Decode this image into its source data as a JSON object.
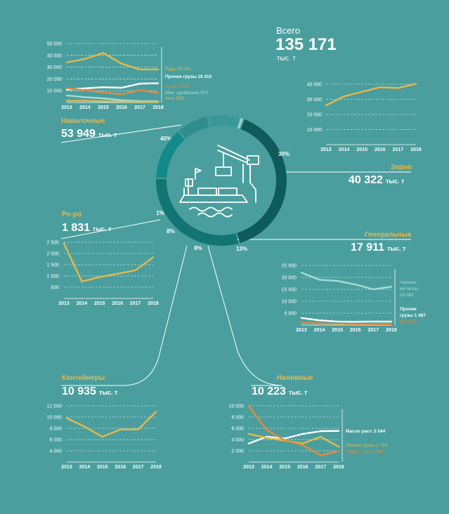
{
  "total": {
    "label": "Всего",
    "value": "135 171",
    "unit": "тыс. т"
  },
  "sections": [
    {
      "id": "bulk",
      "title": "Навалочные",
      "value": "53 949",
      "unit": "тыс. т"
    },
    {
      "id": "grain",
      "title": "Зерно",
      "value": "40 322",
      "unit": "тыс. т"
    },
    {
      "id": "roro",
      "title": "Ро-ро",
      "value": "1 831",
      "unit": "тыс. т"
    },
    {
      "id": "general",
      "title": "Генеральные",
      "value": "17 911",
      "unit": "тыс. т"
    },
    {
      "id": "containers",
      "title": "Контейнеры",
      "value": "10 935",
      "unit": "тыс. т"
    },
    {
      "id": "liquid",
      "title": "Наливные",
      "value": "10 223",
      "unit": "тыс. т"
    }
  ],
  "colors": {
    "background": "#4a9e9e",
    "gold": "#e8b84a",
    "orange": "#e68a3c",
    "light": "#a8dcd6",
    "white": "#ffffff",
    "donut_dark": "#0f5a5a",
    "donut_mid": "#137474",
    "donut_light": "#3a9898"
  },
  "chart_data": [
    {
      "id": "donut",
      "type": "pie",
      "categories": [
        "Навалочные",
        "Зерно",
        "Генеральные",
        "Наливные",
        "Контейнеры",
        "Ро-ро"
      ],
      "values": [
        40,
        30,
        13,
        8,
        8,
        1
      ],
      "labels": [
        "40%",
        "30%",
        "13%",
        "8%",
        "8%",
        "1%"
      ]
    },
    {
      "id": "bulk",
      "type": "line",
      "x": [
        2013,
        2014,
        2015,
        2016,
        2017,
        2018
      ],
      "yticks": [
        "10 000",
        "20 000",
        "30 000",
        "40 000",
        "50 000"
      ],
      "ylim": [
        0,
        50000
      ],
      "series": [
        {
          "name": "Руда 28 061",
          "color": "#e8b84a",
          "values": [
            34000,
            37000,
            42000,
            33000,
            28000,
            28061
          ]
        },
        {
          "name": "Прочие грузы 16 310",
          "color": "#ffffff",
          "values": [
            11000,
            12000,
            13000,
            12500,
            16000,
            16310
          ]
        },
        {
          "name": "Уголь 8 103",
          "color": "#e68a3c",
          "values": [
            12000,
            10500,
            8500,
            7000,
            10500,
            8103
          ]
        },
        {
          "name": "Мин. удобрения 970",
          "color": "#a8dcd6",
          "values": [
            6000,
            4500,
            3500,
            2000,
            1200,
            970
          ]
        },
        {
          "name": "Кокс 505",
          "color": "#e8b84a",
          "values": [
            1500,
            1500,
            1000,
            800,
            700,
            505
          ]
        }
      ]
    },
    {
      "id": "grain",
      "type": "line",
      "x": [
        2013,
        2014,
        2015,
        2016,
        2017,
        2018
      ],
      "yticks": [
        "10 000",
        "20 000",
        "30 000",
        "40 000"
      ],
      "ylim": [
        0,
        40000
      ],
      "series": [
        {
          "color": "#e8b84a",
          "values": [
            26000,
            32000,
            35000,
            38000,
            37500,
            40322
          ]
        }
      ]
    },
    {
      "id": "roro",
      "type": "line",
      "x": [
        2013,
        2014,
        2015,
        2016,
        2017,
        2018
      ],
      "yticks": [
        "500",
        "1 000",
        "1 500",
        "2 000",
        "2 500"
      ],
      "ylim": [
        0,
        2500
      ],
      "series": [
        {
          "color": "#e8b84a",
          "values": [
            2450,
            750,
            950,
            1100,
            1250,
            1831
          ]
        }
      ]
    },
    {
      "id": "general",
      "type": "line",
      "x": [
        2013,
        2014,
        2015,
        2016,
        2017,
        2018
      ],
      "yticks": [
        "5 000",
        "10 000",
        "15 000",
        "20 000",
        "25 000"
      ],
      "ylim": [
        0,
        25000
      ],
      "series": [
        {
          "name": "Черные металлы 16 082",
          "color": "#a8dcd6",
          "values": [
            22000,
            19000,
            18500,
            17000,
            15000,
            16082
          ]
        },
        {
          "name": "Прочие грузы 1 467",
          "color": "#ffffff",
          "values": [
            3000,
            2000,
            1500,
            1400,
            1500,
            1467
          ]
        },
        {
          "name": "Лес 362",
          "color": "#e68a3c",
          "values": [
            1000,
            700,
            500,
            400,
            400,
            362
          ]
        }
      ]
    },
    {
      "id": "containers",
      "type": "line",
      "x": [
        2013,
        2014,
        2015,
        2016,
        2017,
        2018
      ],
      "yticks": [
        "4 000",
        "6 000",
        "8 000",
        "10 000",
        "12 000"
      ],
      "ylim": [
        2000,
        12000
      ],
      "series": [
        {
          "color": "#e8b84a",
          "values": [
            9800,
            8300,
            6500,
            7800,
            7800,
            10935
          ]
        }
      ]
    },
    {
      "id": "liquid",
      "type": "line",
      "x": [
        2013,
        2014,
        2015,
        2016,
        2017,
        2018
      ],
      "yticks": [
        "2 000",
        "4 000",
        "6 000",
        "8 000",
        "10 000"
      ],
      "ylim": [
        0,
        10000
      ],
      "series": [
        {
          "name": "Масло раст. 5 544",
          "color": "#ffffff",
          "values": [
            3300,
            4500,
            4200,
            5000,
            5500,
            5544
          ]
        },
        {
          "name": "Прочие грузы 2 719",
          "color": "#e8b84a",
          "values": [
            5000,
            4300,
            3800,
            3300,
            4500,
            2719
          ]
        },
        {
          "name": "Нефть и н/п 1 961",
          "color": "#e68a3c",
          "values": [
            10000,
            5700,
            3900,
            3000,
            1200,
            1961
          ]
        }
      ]
    }
  ]
}
